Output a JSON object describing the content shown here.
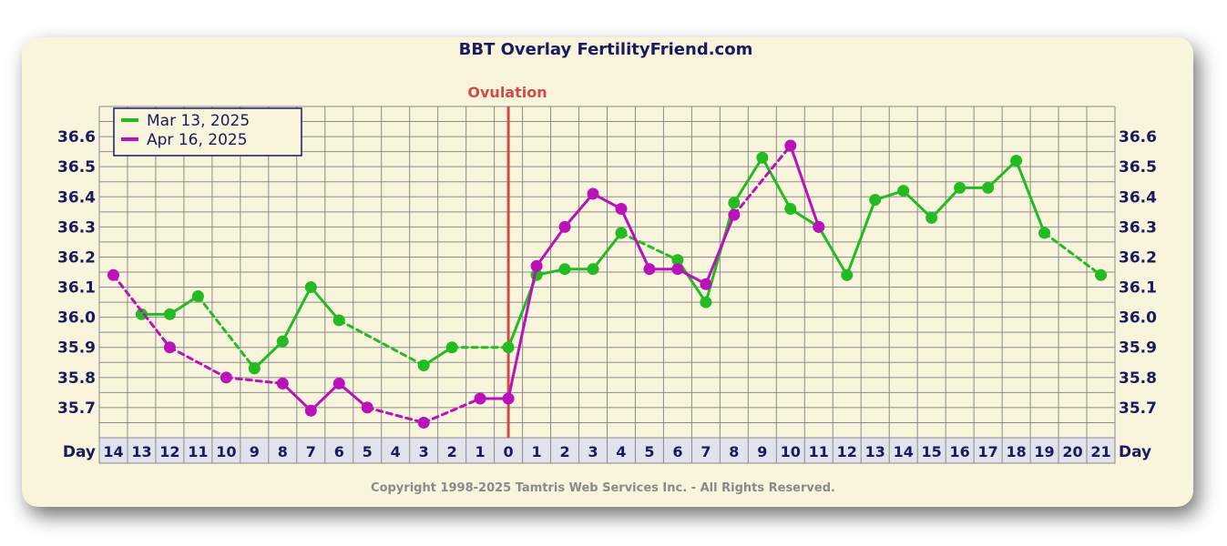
{
  "chart_data": {
    "type": "line",
    "title": "BBT Overlay FertilityFriend.com",
    "ovulation_label": "Ovulation",
    "ovulation_day": "0",
    "xlabel": "Day",
    "categories": [
      "14",
      "13",
      "12",
      "11",
      "10",
      "9",
      "8",
      "7",
      "6",
      "5",
      "4",
      "3",
      "2",
      "1",
      "0",
      "1",
      "2",
      "3",
      "4",
      "5",
      "6",
      "7",
      "8",
      "9",
      "10",
      "11",
      "12",
      "13",
      "14",
      "15",
      "16",
      "17",
      "18",
      "19",
      "20",
      "21"
    ],
    "ylim": [
      35.6,
      36.7
    ],
    "y_ticks": [
      "36.6",
      "36.5",
      "36.4",
      "36.3",
      "36.2",
      "36.1",
      "36.0",
      "35.9",
      "35.8",
      "35.7"
    ],
    "grid": true,
    "legend_position": "top-left",
    "series": [
      {
        "name": "Mar 13, 2025",
        "color": "#22bb22",
        "values": [
          null,
          36.01,
          36.01,
          36.07,
          null,
          35.83,
          35.92,
          36.1,
          35.99,
          null,
          null,
          35.84,
          35.9,
          null,
          35.9,
          36.14,
          36.16,
          36.16,
          36.28,
          null,
          36.19,
          36.05,
          36.38,
          36.53,
          36.36,
          36.3,
          36.14,
          36.39,
          36.42,
          36.33,
          36.43,
          36.43,
          36.52,
          36.28,
          null,
          36.14
        ]
      },
      {
        "name": "Apr 16, 2025",
        "color": "#bb11bb",
        "values": [
          36.14,
          null,
          35.9,
          null,
          35.8,
          null,
          35.78,
          35.69,
          35.78,
          35.7,
          null,
          35.65,
          null,
          35.73,
          35.73,
          36.17,
          36.3,
          36.41,
          36.36,
          36.16,
          36.16,
          36.11,
          36.34,
          null,
          36.57,
          36.3,
          null,
          null,
          null,
          null,
          null,
          null,
          null,
          null,
          null,
          null
        ]
      }
    ]
  },
  "copyright": "Copyright 1998-2025 Tamtris Web Services Inc. - All Rights Reserved."
}
